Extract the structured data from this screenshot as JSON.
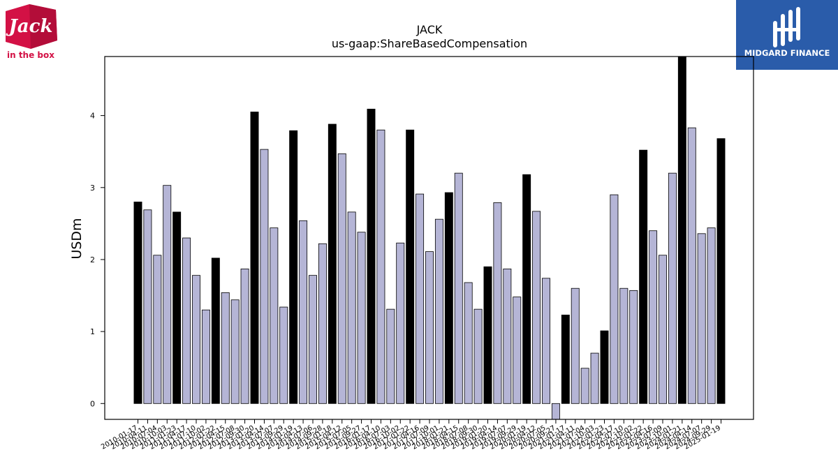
{
  "logos": {
    "left": {
      "name": "Jack in the Box",
      "line1": "Jack",
      "line2": "in the box",
      "color": "#d31145"
    },
    "right": {
      "name": "Midgard Finance",
      "text": "MIDGARD FINANCE",
      "color": "#2a5caa"
    }
  },
  "chart_data": {
    "type": "bar",
    "title": "JACK",
    "subtitle": "us-gaap:ShareBasedCompensation",
    "ylabel": "USDm",
    "xlabel": "",
    "ylim": [
      -0.22,
      4.82
    ],
    "yticks": [
      0,
      1,
      2,
      3,
      4
    ],
    "grid": false,
    "colors": {
      "annual": "#000000",
      "quarterly": "#b5b5d6",
      "edge": "#000000"
    },
    "xtick_labels": [
      "2010-01-17",
      "2010-04-11",
      "2010-07-04",
      "2010-10-03",
      "2011-01-23",
      "2011-04-17",
      "2011-07-10",
      "2011-10-02",
      "2012-01-22",
      "2012-04-15",
      "2012-07-08",
      "2012-09-30",
      "2013-01-20",
      "2013-04-14",
      "2013-07-07",
      "2013-09-29",
      "2014-01-19",
      "2014-04-13",
      "2014-07-06",
      "2014-09-28",
      "2015-01-18",
      "2015-04-12",
      "2015-07-05",
      "2015-09-27",
      "2016-01-17",
      "2016-04-10",
      "2016-07-03",
      "2016-10-02",
      "2017-01-22",
      "2017-04-16",
      "2017-07-09",
      "2017-10-01",
      "2018-01-21",
      "2018-04-15",
      "2018-07-08",
      "2018-09-30",
      "2019-01-20",
      "2019-04-14",
      "2019-07-07",
      "2019-09-29",
      "2020-01-19",
      "2020-04-12",
      "2020-07-05",
      "2020-09-27",
      "2021-01-17",
      "2021-04-11",
      "2021-07-04",
      "2021-10-03",
      "2022-01-23",
      "2022-04-17",
      "2022-07-10",
      "2022-10-02",
      "2023-01-22",
      "2023-04-16",
      "2023-07-09",
      "2023-10-01",
      "2024-01-21",
      "2024-04-14",
      "2024-07-07",
      "2024-09-29",
      "2025-01-19"
    ],
    "values": [
      2.8,
      2.69,
      2.06,
      3.03,
      2.66,
      2.3,
      1.78,
      1.3,
      2.02,
      1.54,
      1.44,
      1.87,
      4.05,
      3.53,
      2.44,
      1.34,
      3.79,
      2.54,
      1.78,
      2.22,
      3.88,
      3.47,
      2.66,
      2.38,
      4.09,
      3.8,
      1.31,
      2.23,
      3.8,
      2.91,
      2.11,
      2.56,
      2.93,
      3.2,
      1.68,
      1.31,
      1.9,
      2.79,
      1.87,
      1.48,
      3.18,
      2.67,
      1.74,
      -0.22,
      1.23,
      1.6,
      0.49,
      0.7,
      1.01,
      2.9,
      1.6,
      1.57,
      3.52,
      2.4,
      2.06,
      3.2,
      4.83,
      3.83,
      2.36,
      2.44,
      3.68
    ],
    "annual": [
      true,
      false,
      false,
      false,
      true,
      false,
      false,
      false,
      true,
      false,
      false,
      false,
      true,
      false,
      false,
      false,
      true,
      false,
      false,
      false,
      true,
      false,
      false,
      false,
      true,
      false,
      false,
      false,
      true,
      false,
      false,
      false,
      true,
      false,
      false,
      false,
      true,
      false,
      false,
      false,
      true,
      false,
      false,
      false,
      true,
      false,
      false,
      false,
      true,
      false,
      false,
      false,
      true,
      false,
      false,
      false,
      true,
      false,
      false,
      false,
      true
    ]
  }
}
